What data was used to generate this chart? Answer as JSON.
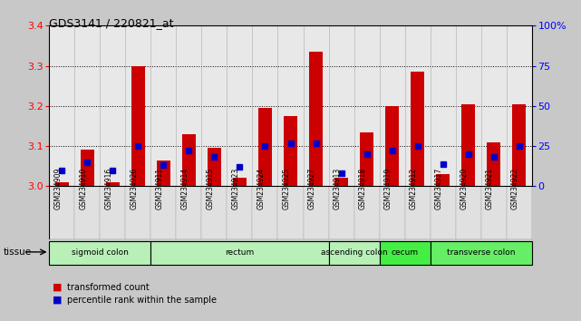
{
  "title": "GDS3141 / 220821_at",
  "samples": [
    "GSM234909",
    "GSM234910",
    "GSM234916",
    "GSM234926",
    "GSM234911",
    "GSM234914",
    "GSM234915",
    "GSM234923",
    "GSM234924",
    "GSM234925",
    "GSM234927",
    "GSM234913",
    "GSM234918",
    "GSM234919",
    "GSM234912",
    "GSM234917",
    "GSM234920",
    "GSM234921",
    "GSM234922"
  ],
  "transformed_counts": [
    3.01,
    3.09,
    3.01,
    3.3,
    3.065,
    3.13,
    3.095,
    3.02,
    3.195,
    3.175,
    3.335,
    3.02,
    3.135,
    3.2,
    3.285,
    3.03,
    3.205,
    3.11,
    3.205
  ],
  "percentile_ranks": [
    10,
    15,
    10,
    25,
    13,
    22,
    18,
    12,
    25,
    27,
    27,
    8,
    20,
    22,
    25,
    14,
    20,
    18,
    25
  ],
  "ymin": 3.0,
  "ymax": 3.4,
  "yticks_left": [
    3.0,
    3.1,
    3.2,
    3.3,
    3.4
  ],
  "yticks_right": [
    0,
    25,
    50,
    75,
    100
  ],
  "tissue_groups": [
    {
      "label": "sigmoid colon",
      "start": 0,
      "end": 4,
      "color": "#b8f0b8"
    },
    {
      "label": "rectum",
      "start": 4,
      "end": 11,
      "color": "#b8f0b8"
    },
    {
      "label": "ascending colon",
      "start": 11,
      "end": 13,
      "color": "#b8f0b8"
    },
    {
      "label": "cecum",
      "start": 13,
      "end": 15,
      "color": "#44ee44"
    },
    {
      "label": "transverse colon",
      "start": 15,
      "end": 19,
      "color": "#66ee66"
    }
  ],
  "bar_color": "#cc0000",
  "percentile_color": "#0000cc",
  "figure_bg": "#c8c8c8",
  "plot_bg": "#ffffff",
  "tissue_label": "tissue",
  "legend_items": [
    "transformed count",
    "percentile rank within the sample"
  ]
}
